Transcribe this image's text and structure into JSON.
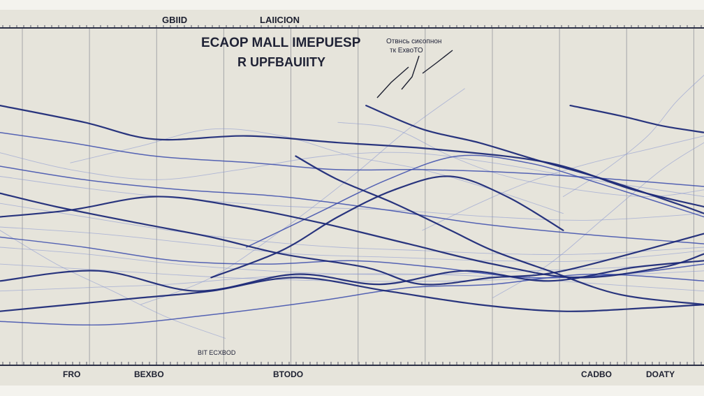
{
  "chart_data": {
    "type": "line",
    "title": "ECAOP MALL IMEPUESP",
    "subtitle": "R UPFBAUIITY",
    "top_labels": [
      "GBIID",
      "LAIICION"
    ],
    "annotation_top_right": [
      "Oтвнсь сиєопнон",
      "тк  ЕхвоТО"
    ],
    "annotation_bottom": "BIT ECXBOD",
    "bottom_labels": [
      "FRO",
      "BEXBO",
      "BTODO",
      "CADBO",
      "DOATY"
    ],
    "x_grid_count": 11,
    "grid": true,
    "xlim": [
      0,
      100
    ],
    "ylim": [
      0,
      100
    ],
    "colors": {
      "dark": "#1e2a78",
      "mid": "#3a4bab",
      "light": "#8a98d0",
      "frame": "#2b2f45",
      "grid": "#6f7280"
    },
    "series": [
      {
        "color": "dark",
        "x": [
          0,
          12,
          22,
          35,
          48,
          62,
          78,
          90,
          100
        ],
        "y": [
          77,
          72,
          67,
          68,
          66,
          64,
          60,
          52,
          47
        ]
      },
      {
        "color": "dark",
        "x": [
          0,
          10,
          22,
          34,
          46,
          58,
          70,
          82,
          94,
          100
        ],
        "y": [
          44,
          46,
          50,
          47,
          42,
          36,
          30,
          26,
          29,
          33
        ]
      },
      {
        "color": "dark",
        "x": [
          0,
          14,
          28,
          42,
          54,
          66,
          78,
          90,
          100
        ],
        "y": [
          25,
          28,
          22,
          27,
          24,
          28,
          25,
          29,
          31
        ]
      },
      {
        "color": "dark",
        "x": [
          0,
          10,
          20,
          30,
          42,
          55,
          68,
          80,
          92,
          100
        ],
        "y": [
          16,
          18,
          20,
          22,
          26,
          22,
          18,
          16,
          17,
          18
        ]
      },
      {
        "color": "dark",
        "x": [
          0,
          8,
          20,
          30,
          40,
          52,
          60,
          70,
          80,
          100
        ],
        "y": [
          51,
          47,
          42,
          38,
          33,
          29,
          24,
          26,
          28,
          39
        ]
      },
      {
        "color": "dark",
        "x": [
          30,
          40,
          48,
          56,
          64,
          72,
          80
        ],
        "y": [
          26,
          34,
          44,
          52,
          56,
          50,
          40
        ]
      },
      {
        "color": "dark",
        "x": [
          52,
          60,
          68,
          76,
          86,
          96,
          100
        ],
        "y": [
          77,
          70,
          66,
          61,
          55,
          48,
          45
        ]
      },
      {
        "color": "dark",
        "x": [
          42,
          48,
          56,
          64,
          70,
          78,
          88,
          100
        ],
        "y": [
          62,
          55,
          48,
          40,
          34,
          28,
          21,
          18
        ]
      },
      {
        "color": "dark",
        "x": [
          81,
          88,
          94,
          100
        ],
        "y": [
          77,
          74,
          71,
          69
        ]
      },
      {
        "color": "mid",
        "x": [
          0,
          10,
          22,
          36,
          48,
          60,
          74,
          88,
          100
        ],
        "y": [
          69,
          66,
          62,
          60,
          58,
          58,
          57,
          55,
          53
        ]
      },
      {
        "color": "mid",
        "x": [
          0,
          12,
          25,
          38,
          50,
          62,
          75,
          88,
          100
        ],
        "y": [
          38,
          35,
          31,
          30,
          31,
          29,
          26,
          27,
          30
        ]
      },
      {
        "color": "mid",
        "x": [
          0,
          15,
          30,
          45,
          58,
          70,
          84,
          100
        ],
        "y": [
          13,
          12,
          15,
          19,
          23,
          24,
          27,
          25
        ]
      },
      {
        "color": "mid",
        "x": [
          35,
          45,
          55,
          65,
          75,
          85,
          100
        ],
        "y": [
          35,
          45,
          55,
          62,
          60,
          54,
          44
        ]
      },
      {
        "color": "mid",
        "x": [
          0,
          12,
          26,
          40,
          55,
          68,
          82,
          100
        ],
        "y": [
          59,
          55,
          52,
          50,
          46,
          42,
          39,
          36
        ]
      },
      {
        "color": "light",
        "x": [
          0,
          14,
          28,
          42,
          56,
          70,
          84,
          100
        ],
        "y": [
          56,
          52,
          49,
          47,
          46,
          44,
          43,
          45
        ]
      },
      {
        "color": "light",
        "x": [
          0,
          12,
          24,
          36,
          48,
          60,
          72,
          84,
          100
        ],
        "y": [
          48,
          44,
          40,
          37,
          35,
          34,
          33,
          33,
          35
        ]
      },
      {
        "color": "light",
        "x": [
          0,
          14,
          28,
          42,
          56,
          70,
          84,
          100
        ],
        "y": [
          41,
          39,
          36,
          33,
          32,
          31,
          31,
          34
        ]
      },
      {
        "color": "light",
        "x": [
          0,
          12,
          25,
          38,
          50,
          62,
          75,
          88,
          100
        ],
        "y": [
          35,
          33,
          30,
          28,
          27,
          27,
          28,
          29,
          31
        ]
      },
      {
        "color": "light",
        "x": [
          0,
          16,
          32,
          48,
          64,
          80,
          100
        ],
        "y": [
          30,
          28,
          26,
          25,
          25,
          26,
          28
        ]
      },
      {
        "color": "light",
        "x": [
          0,
          10,
          22,
          34,
          46,
          58,
          70,
          84,
          100
        ],
        "y": [
          63,
          58,
          55,
          58,
          62,
          63,
          60,
          55,
          50
        ]
      },
      {
        "color": "light",
        "x": [
          10,
          20,
          30,
          40,
          50,
          60,
          70,
          80
        ],
        "y": [
          60,
          65,
          70,
          68,
          62,
          58,
          52,
          45
        ]
      },
      {
        "color": "light",
        "x": [
          48,
          56,
          64,
          72,
          82,
          92,
          100
        ],
        "y": [
          72,
          70,
          62,
          56,
          52,
          50,
          52
        ]
      },
      {
        "color": "light",
        "x": [
          60,
          68,
          76,
          84,
          92,
          100
        ],
        "y": [
          40,
          48,
          55,
          60,
          64,
          68
        ]
      },
      {
        "color": "light",
        "x": [
          0,
          12,
          24,
          36,
          48,
          60,
          72,
          86,
          100
        ],
        "y": [
          22,
          23,
          24,
          26,
          27,
          27,
          26,
          24,
          22
        ]
      },
      {
        "color": "light",
        "x": [
          20,
          30,
          40,
          50,
          58,
          66
        ],
        "y": [
          18,
          26,
          40,
          56,
          70,
          82
        ]
      },
      {
        "color": "light",
        "x": [
          70,
          78,
          86,
          94,
          100
        ],
        "y": [
          20,
          30,
          44,
          58,
          66
        ]
      },
      {
        "color": "light",
        "x": [
          0,
          8,
          16,
          24,
          32
        ],
        "y": [
          40,
          30,
          22,
          14,
          8
        ]
      },
      {
        "color": "light",
        "x": [
          80,
          86,
          92,
          96,
          100
        ],
        "y": [
          50,
          58,
          68,
          78,
          86
        ]
      }
    ]
  }
}
